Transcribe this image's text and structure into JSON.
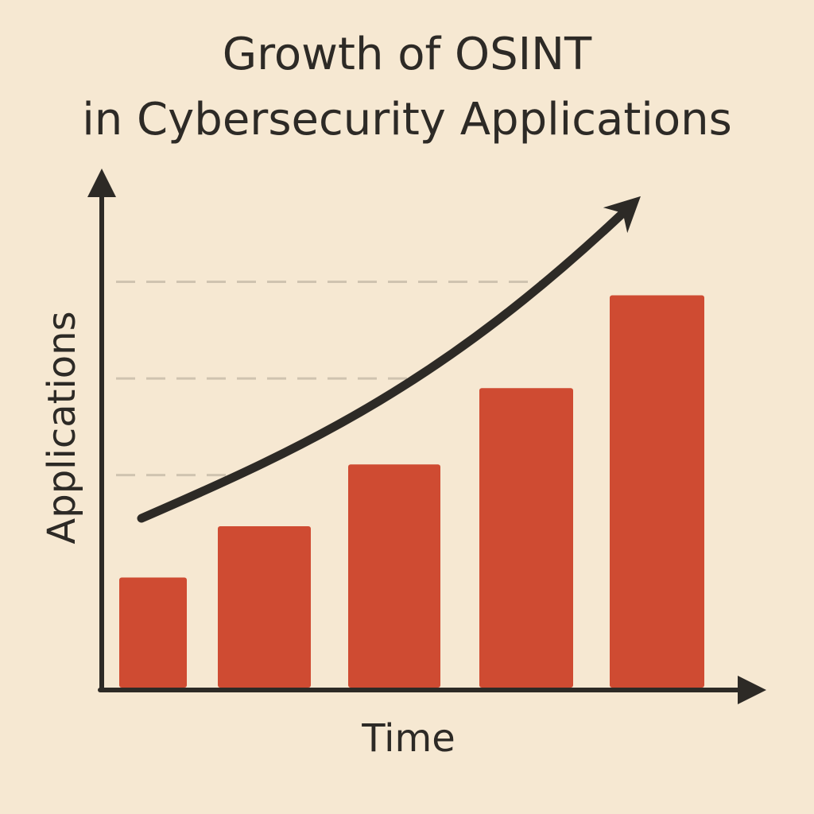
{
  "chart_data": {
    "type": "bar",
    "title": [
      "Growth of OSINT",
      "in Cybersecurity Applications"
    ],
    "xlabel": "Time",
    "ylabel": "Applications",
    "categories": [
      "",
      "",
      "",
      "",
      ""
    ],
    "values": [
      1.14,
      1.67,
      2.31,
      3.1,
      4.06
    ],
    "ylim": [
      0,
      5.2
    ],
    "gridlines": [
      2.2,
      3.2,
      4.2
    ],
    "grid": true,
    "legend": "none",
    "trend_arrow": true,
    "colors": {
      "bar": "#cf4b32",
      "axis": "#2d2a26",
      "grid": "#cfc3b0",
      "background": "#f6e8d2"
    }
  }
}
